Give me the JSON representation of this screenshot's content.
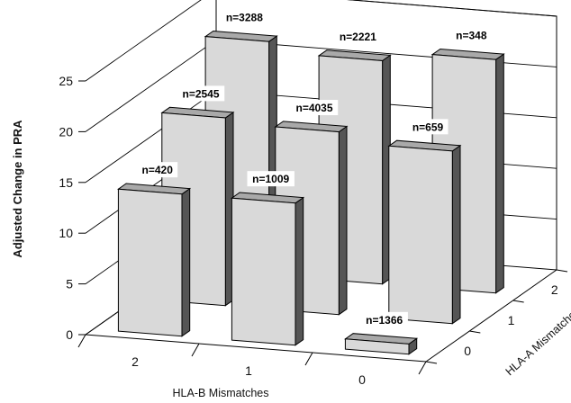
{
  "chart_data": {
    "type": "bar3d",
    "ylabel": "Adjusted Change in PRA",
    "xlabel": "HLA-B Mismatches",
    "zlabel": "HLA-A Mismatches",
    "ylim": [
      0,
      25
    ],
    "yticks": [
      0,
      5,
      10,
      15,
      20,
      25
    ],
    "x_categories": [
      "2",
      "1",
      "0"
    ],
    "z_categories": [
      "0",
      "1",
      "2"
    ],
    "grid": true,
    "bars": [
      {
        "hla_b": "2",
        "hla_a": "0",
        "value": 14,
        "label": "n=420"
      },
      {
        "hla_b": "1",
        "hla_a": "0",
        "value": 14,
        "label": "n=1009"
      },
      {
        "hla_b": "0",
        "hla_a": "0",
        "value": 1,
        "label": "n=1366"
      },
      {
        "hla_b": "2",
        "hla_a": "1",
        "value": 18.5,
        "label": "n=2545"
      },
      {
        "hla_b": "1",
        "hla_a": "1",
        "value": 18,
        "label": "n=4035"
      },
      {
        "hla_b": "0",
        "hla_a": "1",
        "value": 17,
        "label": "n=659"
      },
      {
        "hla_b": "2",
        "hla_a": "2",
        "value": 23,
        "label": "n=3288"
      },
      {
        "hla_b": "1",
        "hla_a": "2",
        "value": 22,
        "label": "n=2221"
      },
      {
        "hla_b": "0",
        "hla_a": "2",
        "value": 23,
        "label": "n=348"
      }
    ],
    "colors": {
      "front": "#d9d9d9",
      "top": "#a9a9a9",
      "side": "#555555",
      "stroke": "#000000"
    }
  }
}
